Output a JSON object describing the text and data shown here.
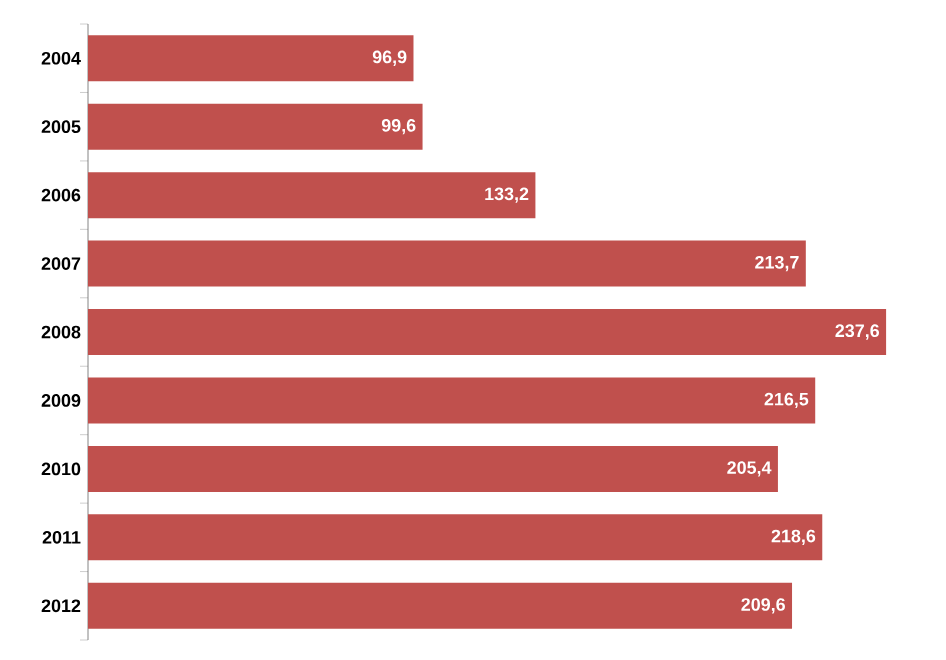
{
  "chart_data": {
    "type": "bar",
    "orientation": "horizontal",
    "categories": [
      "2004",
      "2005",
      "2006",
      "2007",
      "2008",
      "2009",
      "2010",
      "2011",
      "2012"
    ],
    "values": [
      96.9,
      99.6,
      133.2,
      213.7,
      237.6,
      216.5,
      205.4,
      218.6,
      209.6
    ],
    "value_labels": [
      "96,9",
      "99,6",
      "133,2",
      "213,7",
      "237,6",
      "216,5",
      "205,4",
      "218,6",
      "209,6"
    ],
    "color": "#c0504d",
    "tick_labels": "y"
  }
}
